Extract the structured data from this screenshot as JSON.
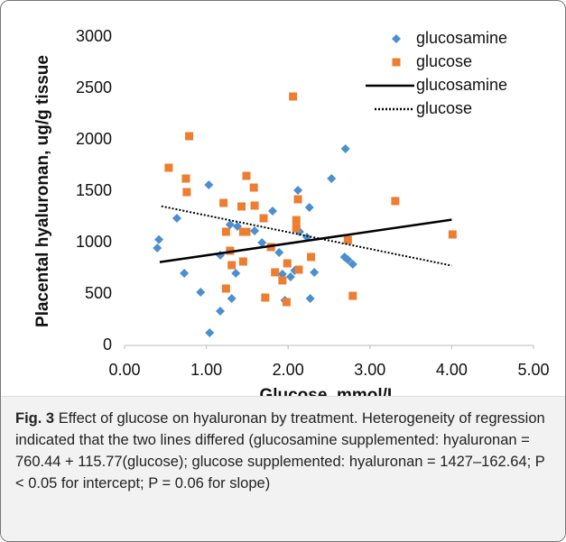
{
  "chart_data": {
    "type": "scatter",
    "xlabel": "Glucose, mmol/L",
    "ylabel": "Placental hyaluronan, ug/g tissue",
    "xlim": [
      0,
      5
    ],
    "ylim": [
      0,
      3000
    ],
    "xticks": [
      {
        "value": 0,
        "label": "0.00"
      },
      {
        "value": 1,
        "label": "1.00"
      },
      {
        "value": 2,
        "label": "2.00"
      },
      {
        "value": 3,
        "label": "3.00"
      },
      {
        "value": 4,
        "label": "4.00"
      },
      {
        "value": 5,
        "label": "5.00"
      }
    ],
    "yticks": [
      0,
      500,
      1000,
      1500,
      2000,
      2500,
      3000
    ],
    "legend": "top-right",
    "series": [
      {
        "name": "glucosamine",
        "color": "#4a8fd0",
        "marker": "diamond",
        "x": [
          0.42,
          0.4,
          0.64,
          0.73,
          0.93,
          1.03,
          1.04,
          1.17,
          1.17,
          1.29,
          1.31,
          1.38,
          1.36,
          1.59,
          1.68,
          1.81,
          1.89,
          1.93,
          1.96,
          2.03,
          2.08,
          2.12,
          2.14,
          2.23,
          2.26,
          2.27,
          2.32,
          2.53,
          2.7,
          2.69,
          2.73,
          2.79
        ],
        "values": [
          1030,
          947,
          1237,
          702,
          518,
          1561,
          123,
          333,
          877,
          1175,
          456,
          1158,
          702,
          1114,
          1000,
          1307,
          904,
          693,
          439,
          667,
          728,
          1509,
          1105,
          1053,
          1342,
          456,
          711,
          1623,
          1912,
          860,
          833,
          790
        ]
      },
      {
        "name": "glucose",
        "color": "#ed7d31",
        "marker": "square",
        "x": [
          0.54,
          0.75,
          0.76,
          0.79,
          1.21,
          1.24,
          1.24,
          1.29,
          1.31,
          1.43,
          1.45,
          1.45,
          1.49,
          1.49,
          1.58,
          1.59,
          1.7,
          1.72,
          1.79,
          1.84,
          1.93,
          1.98,
          1.99,
          2.06,
          2.1,
          2.1,
          2.12,
          2.13,
          2.28,
          2.73,
          2.79,
          3.31,
          4.01
        ],
        "values": [
          1728,
          1623,
          1491,
          2035,
          1386,
          1105,
          553,
          921,
          781,
          1351,
          816,
          1105,
          1105,
          1649,
          1535,
          1360,
          1237,
          465,
          956,
          711,
          632,
          421,
          798,
          2421,
          1219,
          1140,
          1421,
          737,
          860,
          1026,
          482,
          1404,
          1079
        ]
      },
      {
        "name": "glucosamine",
        "color": "#000000",
        "line_style": "solid",
        "x": [
          0.43,
          4.0
        ],
        "values": [
          810,
          1223
        ]
      },
      {
        "name": "glucose",
        "color": "#000000",
        "line_style": "dotted",
        "x": [
          0.45,
          4.0
        ],
        "values": [
          1354,
          776
        ]
      }
    ]
  },
  "caption": {
    "label": "Fig. 3",
    "text": "Effect of glucose on hyaluronan by treatment. Heterogeneity of regression indicated that the two lines differed (glucosamine supplemented: hyaluronan = 760.44 + 115.77(glucose); glucose supplemented: hyaluronan = 1427–162.64; P < 0.05 for intercept; P = 0.06 for slope)"
  }
}
